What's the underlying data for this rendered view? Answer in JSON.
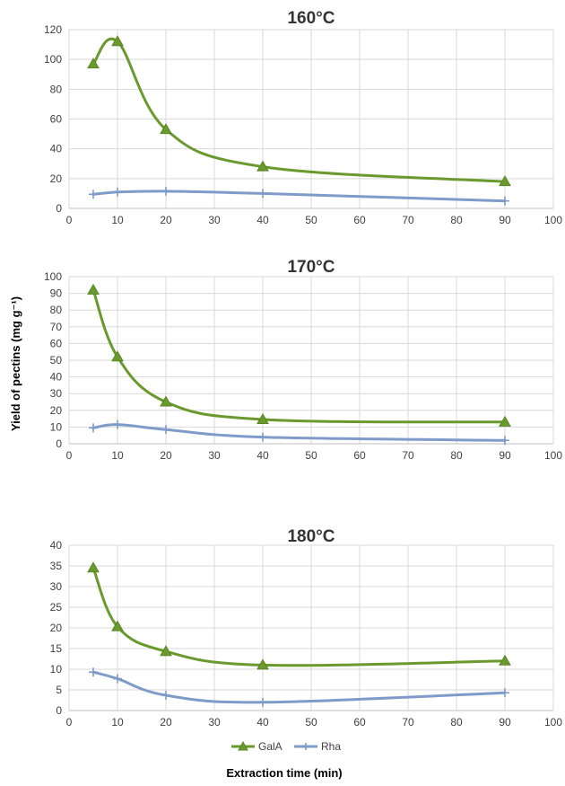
{
  "figure": {
    "ylabel": "Yield of pectins (mg g⁻¹)",
    "xlabel": "Extraction time (min)"
  },
  "legend": {
    "items": [
      "GalA",
      "Rha"
    ]
  },
  "colors": {
    "GalA": "#6a9a2e",
    "Rha": "#7e9bc9",
    "grid": "#d9d9d9",
    "axis": "#bfbfbf",
    "text": "#404040"
  },
  "chart_data": [
    {
      "type": "line",
      "title": "160°C",
      "x": [
        5,
        10,
        20,
        40,
        90
      ],
      "xlim": [
        0,
        100
      ],
      "xticks": [
        0,
        10,
        20,
        30,
        40,
        50,
        60,
        70,
        80,
        90,
        100
      ],
      "ylim": [
        0,
        120
      ],
      "yticks": [
        0,
        20,
        40,
        60,
        80,
        100,
        120
      ],
      "grid": true,
      "series": [
        {
          "name": "GalA",
          "values": [
            97,
            112,
            53,
            28,
            18
          ],
          "marker": "triangle"
        },
        {
          "name": "Rha",
          "values": [
            9.5,
            11,
            11.5,
            10,
            5
          ],
          "marker": "plus"
        }
      ]
    },
    {
      "type": "line",
      "title": "170°C",
      "x": [
        5,
        10,
        20,
        40,
        90
      ],
      "xlim": [
        0,
        100
      ],
      "xticks": [
        0,
        10,
        20,
        30,
        40,
        50,
        60,
        70,
        80,
        90,
        100
      ],
      "ylim": [
        0,
        100
      ],
      "yticks": [
        0,
        10,
        20,
        30,
        40,
        50,
        60,
        70,
        80,
        90,
        100
      ],
      "grid": true,
      "series": [
        {
          "name": "GalA",
          "values": [
            92,
            52,
            25,
            14.5,
            13
          ],
          "marker": "triangle"
        },
        {
          "name": "Rha",
          "values": [
            9.5,
            11.5,
            8.5,
            4,
            2
          ],
          "marker": "plus"
        }
      ]
    },
    {
      "type": "line",
      "title": "180°C",
      "x": [
        5,
        10,
        20,
        40,
        90
      ],
      "xlim": [
        0,
        100
      ],
      "xticks": [
        0,
        10,
        20,
        30,
        40,
        50,
        60,
        70,
        80,
        90,
        100
      ],
      "ylim": [
        0,
        40
      ],
      "yticks": [
        0,
        5,
        10,
        15,
        20,
        25,
        30,
        35,
        40
      ],
      "grid": true,
      "series": [
        {
          "name": "GalA",
          "values": [
            34.5,
            20.3,
            14.3,
            11,
            12
          ],
          "marker": "triangle"
        },
        {
          "name": "Rha",
          "values": [
            9.3,
            7.7,
            3.7,
            2,
            4.3
          ],
          "marker": "plus"
        }
      ]
    }
  ]
}
